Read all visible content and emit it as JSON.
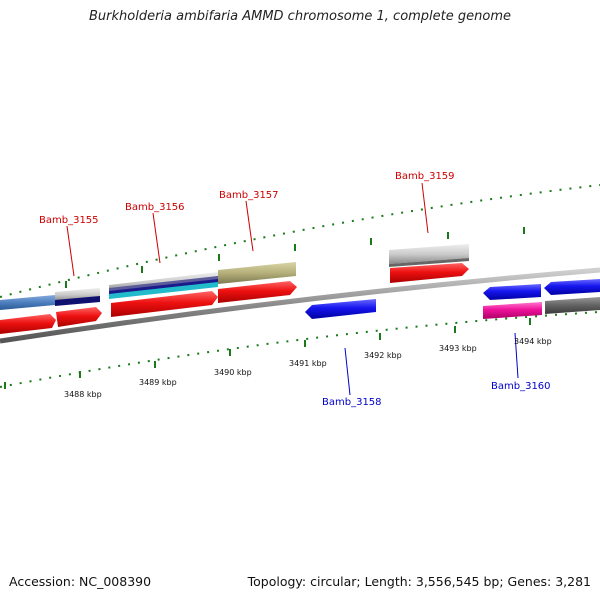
{
  "title": "Burkholderia ambifaria AMMD chromosome 1, complete genome",
  "footer": {
    "accession": "Accession: NC_008390",
    "summary": "Topology: circular; Length: 3,556,545 bp; Genes: 3,281"
  },
  "scale_labels": [
    "3488 kbp",
    "3489 kbp",
    "3490 kbp",
    "3491 kbp",
    "3492 kbp",
    "3493 kbp",
    "3494 kbp"
  ],
  "gene_labels": [
    {
      "id": "forward-1",
      "text": "Bamb_3155",
      "strand": "forward"
    },
    {
      "id": "forward-2",
      "text": "Bamb_3156",
      "strand": "forward"
    },
    {
      "id": "forward-3",
      "text": "Bamb_3157",
      "strand": "forward"
    },
    {
      "id": "forward-4",
      "text": "Bamb_3159",
      "strand": "forward"
    },
    {
      "id": "reverse-1",
      "text": "Bamb_3158",
      "strand": "reverse"
    },
    {
      "id": "reverse-2",
      "text": "Bamb_3160",
      "strand": "reverse"
    }
  ],
  "colors": {
    "forward_label": "#cc0000",
    "reverse_label": "#0000cc",
    "tick": "#1a7a1a",
    "backbone": "#888888",
    "cds_red": "#ee1111",
    "cds_blue": "#1515ee",
    "cds_pink": "#ee1199",
    "cds_grey": "#666666",
    "gene_light_grey": "#bbbbbb",
    "gene_olive": "#b5b07a",
    "gene_steel": "#4d7fbf",
    "gene_navy": "#1a1a8a",
    "gene_cyan": "#22bbcc",
    "gene_purple": "#5b5b9b"
  }
}
